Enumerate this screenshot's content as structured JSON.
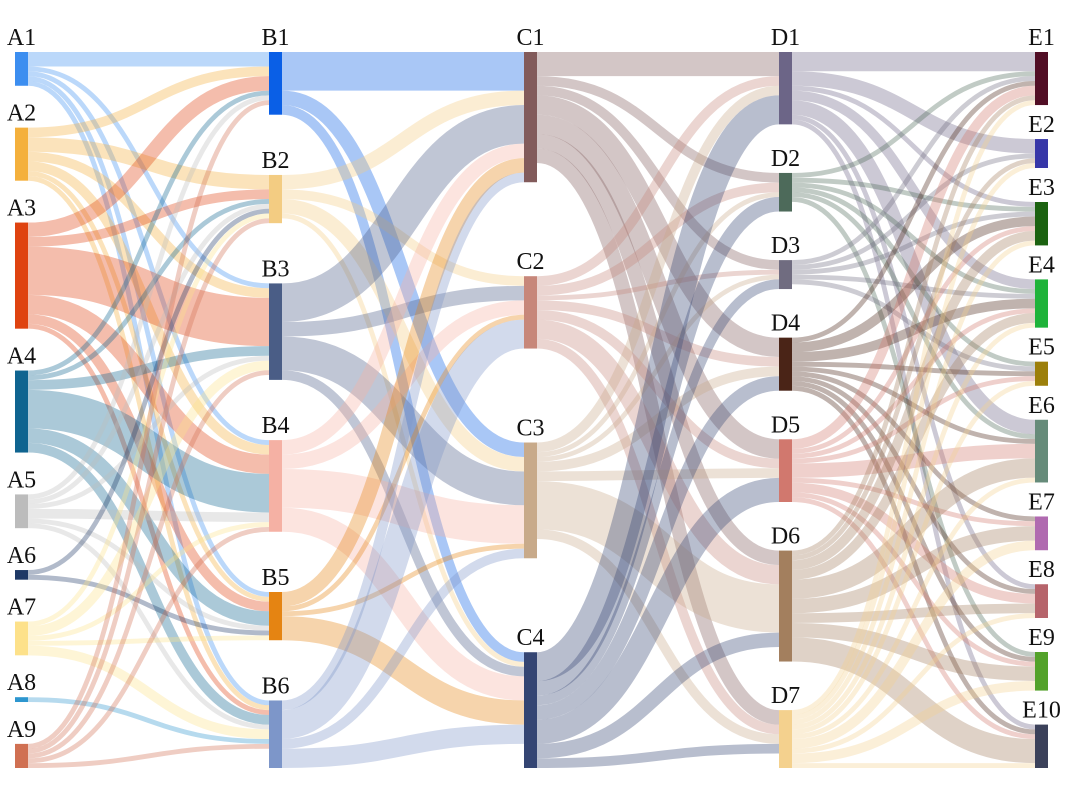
{
  "chart_data": {
    "type": "sankey",
    "levels": [
      [
        {
          "id": "A1",
          "label": "A1",
          "color": "#3c8ef0"
        },
        {
          "id": "A2",
          "label": "A2",
          "color": "#f4b03c"
        },
        {
          "id": "A3",
          "label": "A3",
          "color": "#df4310"
        },
        {
          "id": "A4",
          "label": "A4",
          "color": "#0f6490"
        },
        {
          "id": "A5",
          "label": "A5",
          "color": "#bcbcbc"
        },
        {
          "id": "A6",
          "label": "A6",
          "color": "#1f3966"
        },
        {
          "id": "A7",
          "label": "A7",
          "color": "#fde18a"
        },
        {
          "id": "A8",
          "label": "A8",
          "color": "#2d96cf"
        },
        {
          "id": "A9",
          "label": "A9",
          "color": "#d07052"
        }
      ],
      [
        {
          "id": "B1",
          "label": "B1",
          "color": "#0a5fe6"
        },
        {
          "id": "B2",
          "label": "B2",
          "color": "#f3cc82"
        },
        {
          "id": "B3",
          "label": "B3",
          "color": "#4a5d86"
        },
        {
          "id": "B4",
          "label": "B4",
          "color": "#f5b1a4"
        },
        {
          "id": "B5",
          "label": "B5",
          "color": "#e58412"
        },
        {
          "id": "B6",
          "label": "B6",
          "color": "#7d96c9"
        }
      ],
      [
        {
          "id": "C1",
          "label": "C1",
          "color": "#825b5b"
        },
        {
          "id": "C2",
          "label": "C2",
          "color": "#c7877a"
        },
        {
          "id": "C3",
          "label": "C3",
          "color": "#c8aa8a"
        },
        {
          "id": "C4",
          "label": "C4",
          "color": "#344573"
        }
      ],
      [
        {
          "id": "D1",
          "label": "D1",
          "color": "#6c6587"
        },
        {
          "id": "D2",
          "label": "D2",
          "color": "#4d6a5a"
        },
        {
          "id": "D3",
          "label": "D3",
          "color": "#706c80"
        },
        {
          "id": "D4",
          "label": "D4",
          "color": "#4a2417"
        },
        {
          "id": "D5",
          "label": "D5",
          "color": "#d1786e"
        },
        {
          "id": "D6",
          "label": "D6",
          "color": "#a37f5e"
        },
        {
          "id": "D7",
          "label": "D7",
          "color": "#f4d18e"
        }
      ],
      [
        {
          "id": "E1",
          "label": "E1",
          "color": "#510e25"
        },
        {
          "id": "E2",
          "label": "E2",
          "color": "#3737a8"
        },
        {
          "id": "E3",
          "label": "E3",
          "color": "#1b6210"
        },
        {
          "id": "E4",
          "label": "E4",
          "color": "#1fb33a"
        },
        {
          "id": "E5",
          "label": "E5",
          "color": "#9c7f0a"
        },
        {
          "id": "E6",
          "label": "E6",
          "color": "#668b7a"
        },
        {
          "id": "E7",
          "label": "E7",
          "color": "#b06ab0"
        },
        {
          "id": "E8",
          "label": "E8",
          "color": "#b6646b"
        },
        {
          "id": "E9",
          "label": "E9",
          "color": "#53a22a"
        },
        {
          "id": "E10",
          "label": "E10",
          "color": "#3b415a"
        }
      ]
    ],
    "links": [
      [
        "A1",
        "B1",
        3
      ],
      [
        "A1",
        "B3",
        1
      ],
      [
        "A1",
        "B4",
        1
      ],
      [
        "A1",
        "B5",
        1
      ],
      [
        "A1",
        "B6",
        1
      ],
      [
        "A2",
        "B1",
        2
      ],
      [
        "A2",
        "B2",
        3
      ],
      [
        "A2",
        "B3",
        2
      ],
      [
        "A2",
        "B4",
        2
      ],
      [
        "A2",
        "B5",
        1
      ],
      [
        "A2",
        "B6",
        1
      ],
      [
        "A3",
        "B1",
        3
      ],
      [
        "A3",
        "B2",
        2
      ],
      [
        "A3",
        "B3",
        10
      ],
      [
        "A3",
        "B4",
        4
      ],
      [
        "A3",
        "B5",
        2
      ],
      [
        "A3",
        "B6",
        1
      ],
      [
        "A4",
        "B1",
        1
      ],
      [
        "A4",
        "B2",
        1
      ],
      [
        "A4",
        "B3",
        2
      ],
      [
        "A4",
        "B4",
        8
      ],
      [
        "A4",
        "B5",
        3
      ],
      [
        "A4",
        "B6",
        2
      ],
      [
        "A5",
        "B1",
        1
      ],
      [
        "A5",
        "B2",
        1
      ],
      [
        "A5",
        "B3",
        1
      ],
      [
        "A5",
        "B4",
        2
      ],
      [
        "A5",
        "B5",
        1
      ],
      [
        "A5",
        "B6",
        1
      ],
      [
        "A6",
        "B2",
        1
      ],
      [
        "A6",
        "B5",
        1
      ],
      [
        "A7",
        "B2",
        1
      ],
      [
        "A7",
        "B3",
        2
      ],
      [
        "A7",
        "B4",
        1
      ],
      [
        "A7",
        "B5",
        1
      ],
      [
        "A7",
        "B6",
        2
      ],
      [
        "A8",
        "B6",
        1
      ],
      [
        "A9",
        "B1",
        1
      ],
      [
        "A9",
        "B2",
        1
      ],
      [
        "A9",
        "B3",
        1
      ],
      [
        "A9",
        "B4",
        1
      ],
      [
        "A9",
        "B6",
        1
      ],
      [
        "B1",
        "C1",
        8
      ],
      [
        "B1",
        "C3",
        3
      ],
      [
        "B1",
        "C4",
        2
      ],
      [
        "B2",
        "C1",
        3
      ],
      [
        "B2",
        "C2",
        2
      ],
      [
        "B2",
        "C3",
        3
      ],
      [
        "B2",
        "C4",
        1
      ],
      [
        "B3",
        "C1",
        8
      ],
      [
        "B3",
        "C2",
        3
      ],
      [
        "B3",
        "C3",
        7
      ],
      [
        "B3",
        "C4",
        2
      ],
      [
        "B4",
        "C1",
        3
      ],
      [
        "B4",
        "C2",
        3
      ],
      [
        "B4",
        "C3",
        8
      ],
      [
        "B4",
        "C4",
        5
      ],
      [
        "B5",
        "C1",
        3
      ],
      [
        "B5",
        "C2",
        1
      ],
      [
        "B5",
        "C3",
        1
      ],
      [
        "B5",
        "C4",
        5
      ],
      [
        "B6",
        "C1",
        2
      ],
      [
        "B6",
        "C2",
        6
      ],
      [
        "B6",
        "C3",
        2
      ],
      [
        "B6",
        "C4",
        4
      ],
      [
        "C1",
        "D1",
        5
      ],
      [
        "C1",
        "D2",
        2
      ],
      [
        "C1",
        "D3",
        2
      ],
      [
        "C1",
        "D4",
        4
      ],
      [
        "C1",
        "D5",
        4
      ],
      [
        "C1",
        "D6",
        3
      ],
      [
        "C1",
        "D7",
        3
      ],
      [
        "C2",
        "D1",
        2
      ],
      [
        "C2",
        "D2",
        2
      ],
      [
        "C2",
        "D3",
        1
      ],
      [
        "C2",
        "D4",
        2
      ],
      [
        "C2",
        "D5",
        2
      ],
      [
        "C2",
        "D6",
        4
      ],
      [
        "C2",
        "D7",
        2
      ],
      [
        "C3",
        "D1",
        2
      ],
      [
        "C3",
        "D2",
        1
      ],
      [
        "C3",
        "D3",
        1
      ],
      [
        "C3",
        "D4",
        2
      ],
      [
        "C3",
        "D5",
        2
      ],
      [
        "C3",
        "D6",
        10
      ],
      [
        "C3",
        "D7",
        2
      ],
      [
        "C4",
        "D1",
        6
      ],
      [
        "C4",
        "D2",
        3
      ],
      [
        "C4",
        "D3",
        2
      ],
      [
        "C4",
        "D4",
        3
      ],
      [
        "C4",
        "D5",
        5
      ],
      [
        "C4",
        "D6",
        3
      ],
      [
        "C4",
        "D7",
        2
      ],
      [
        "D1",
        "E1",
        4
      ],
      [
        "D1",
        "E2",
        3
      ],
      [
        "D1",
        "E3",
        1
      ],
      [
        "D1",
        "E4",
        2
      ],
      [
        "D1",
        "E6",
        3
      ],
      [
        "D1",
        "E8",
        1
      ],
      [
        "D1",
        "E10",
        1
      ],
      [
        "D2",
        "E1",
        1
      ],
      [
        "D2",
        "E3",
        1
      ],
      [
        "D2",
        "E4",
        1
      ],
      [
        "D2",
        "E5",
        1
      ],
      [
        "D2",
        "E6",
        1
      ],
      [
        "D2",
        "E9",
        1
      ],
      [
        "D3",
        "E1",
        1
      ],
      [
        "D3",
        "E2",
        1
      ],
      [
        "D3",
        "E3",
        1
      ],
      [
        "D3",
        "E4",
        1
      ],
      [
        "D3",
        "E5",
        1
      ],
      [
        "D4",
        "E1",
        1
      ],
      [
        "D4",
        "E3",
        2
      ],
      [
        "D4",
        "E4",
        2
      ],
      [
        "D4",
        "E5",
        1
      ],
      [
        "D4",
        "E6",
        1
      ],
      [
        "D4",
        "E7",
        1
      ],
      [
        "D4",
        "E8",
        1
      ],
      [
        "D4",
        "E9",
        1
      ],
      [
        "D4",
        "E10",
        1
      ],
      [
        "D5",
        "E1",
        2
      ],
      [
        "D5",
        "E3",
        1
      ],
      [
        "D5",
        "E4",
        1
      ],
      [
        "D5",
        "E5",
        1
      ],
      [
        "D5",
        "E6",
        3
      ],
      [
        "D5",
        "E7",
        1
      ],
      [
        "D5",
        "E8",
        2
      ],
      [
        "D5",
        "E9",
        1
      ],
      [
        "D5",
        "E10",
        1
      ],
      [
        "D6",
        "E1",
        1
      ],
      [
        "D6",
        "E2",
        1
      ],
      [
        "D6",
        "E3",
        2
      ],
      [
        "D6",
        "E4",
        2
      ],
      [
        "D6",
        "E6",
        4
      ],
      [
        "D6",
        "E7",
        3
      ],
      [
        "D6",
        "E8",
        2
      ],
      [
        "D6",
        "E9",
        3
      ],
      [
        "D6",
        "E10",
        5
      ],
      [
        "D7",
        "E1",
        1
      ],
      [
        "D7",
        "E2",
        1
      ],
      [
        "D7",
        "E3",
        1
      ],
      [
        "D7",
        "E4",
        1
      ],
      [
        "D7",
        "E5",
        1
      ],
      [
        "D7",
        "E6",
        1
      ],
      [
        "D7",
        "E7",
        2
      ],
      [
        "D7",
        "E8",
        1
      ],
      [
        "D7",
        "E9",
        2
      ],
      [
        "D7",
        "E10",
        1
      ]
    ]
  }
}
